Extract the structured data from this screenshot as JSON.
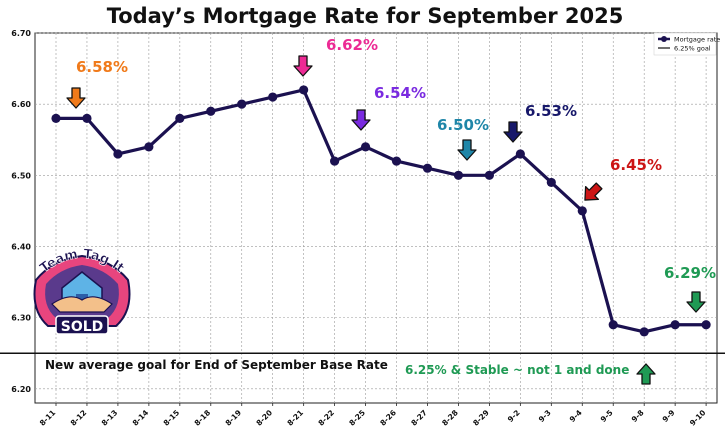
{
  "chart_data": {
    "type": "line",
    "title": "Today’s Mortgage Rate for September 2025",
    "categories": [
      "8-11",
      "8-12",
      "8-13",
      "8-14",
      "8-15",
      "8-18",
      "8-19",
      "8-20",
      "8-21",
      "8-22",
      "8-25",
      "8-26",
      "8-27",
      "8-28",
      "8-29",
      "9-2",
      "9-3",
      "9-4",
      "9-5",
      "9-8",
      "9-9",
      "9-10"
    ],
    "series": [
      {
        "name": "Mortgage rate",
        "color": "#1b1150",
        "values": [
          6.58,
          6.58,
          6.53,
          6.54,
          6.58,
          6.59,
          6.6,
          6.61,
          6.62,
          6.52,
          6.54,
          6.52,
          6.51,
          6.5,
          6.5,
          6.53,
          6.49,
          6.45,
          6.29,
          6.28,
          6.29,
          6.29
        ]
      }
    ],
    "reference_line": {
      "name": "6.25% goal",
      "value": 6.25,
      "color": "#111111"
    },
    "yticks": [
      6.2,
      6.3,
      6.4,
      6.5,
      6.6,
      6.7
    ],
    "ylim": [
      6.18,
      6.7
    ],
    "grid": true,
    "legend_position": "top-right",
    "callouts": [
      {
        "label": "6.58%",
        "index": 1,
        "color": "#f07a1a",
        "arrow": "down"
      },
      {
        "label": "6.62%",
        "index": 8,
        "color": "#ec2a94",
        "arrow": "down"
      },
      {
        "label": "6.54%",
        "index": 10,
        "color": "#7a2be0",
        "arrow": "down"
      },
      {
        "label": "6.50%",
        "index": 14,
        "color": "#1f86a8",
        "arrow": "down"
      },
      {
        "label": "6.53%",
        "index": 15,
        "color": "#17186a",
        "arrow": "down"
      },
      {
        "label": "6.45%",
        "index": 17,
        "color": "#cc1515",
        "arrow": "down-left"
      },
      {
        "label": "6.29%",
        "index": 21,
        "color": "#1f9a54",
        "arrow": "down"
      }
    ],
    "annotations": {
      "goal_text": "New average goal for End of September Base Rate",
      "stable_text": "6.25% & Stable ~ not 1 and done",
      "stable_color": "#1f9a54"
    }
  },
  "logo": {
    "line1": "Team Tag It",
    "line2": "SOLD"
  }
}
